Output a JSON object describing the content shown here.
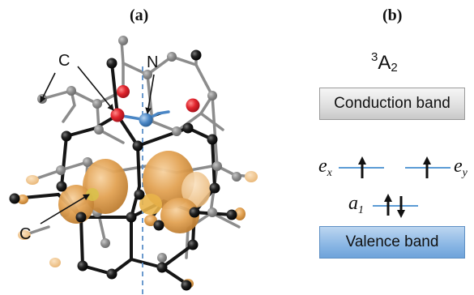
{
  "panels": {
    "a": "(a)",
    "b": "(b)"
  },
  "atom_labels": {
    "carbon_top": "C",
    "nitrogen": "N",
    "carbon_bottom": "C"
  },
  "state": {
    "multiplicity": "3",
    "symbol": "A",
    "subscript": "2"
  },
  "bands": {
    "conduction": "Conduction band",
    "valence": "Valence band"
  },
  "orbitals": {
    "ex": {
      "letter": "e",
      "sub": "x"
    },
    "ey": {
      "letter": "e",
      "sub": "y"
    },
    "a1": {
      "letter": "a",
      "sub": "1"
    }
  },
  "colors": {
    "carbon": "#1a1a1a",
    "nitrogen": "#4a86c5",
    "vacancy_neighbor": "#e0242c",
    "orbital_density": "#d9923a",
    "valence_band": "#89b6e4",
    "conduction_band": "#dcdcdc",
    "level_line": "#5b9bd5"
  }
}
